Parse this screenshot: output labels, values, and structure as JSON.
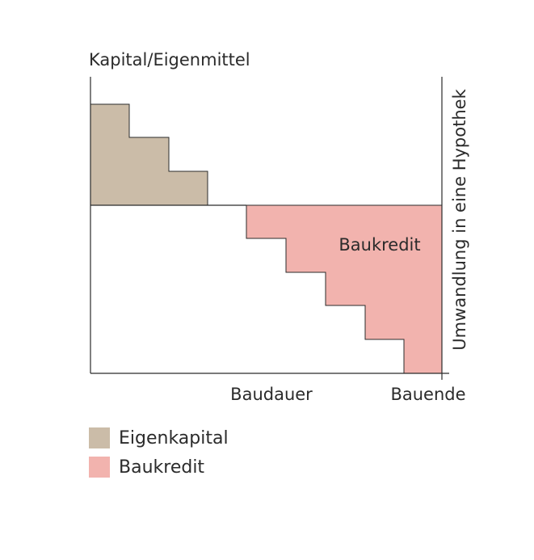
{
  "diagram": {
    "y_axis_label": "Kapital/Eigenmittel",
    "right_axis_label": "Umwandlung in eine Hypothek",
    "x_tick_labels": [
      "Baudauer",
      "Bauende"
    ],
    "region_label": "Baukredit",
    "colors": {
      "eigenkapital": "#cbbca8",
      "baukredit": "#f2b3ae",
      "line": "#2b2b2b"
    }
  },
  "legend": {
    "items": [
      {
        "label": "Eigenkapital",
        "color": "#cbbca8"
      },
      {
        "label": "Baukredit",
        "color": "#f2b3ae"
      }
    ]
  }
}
